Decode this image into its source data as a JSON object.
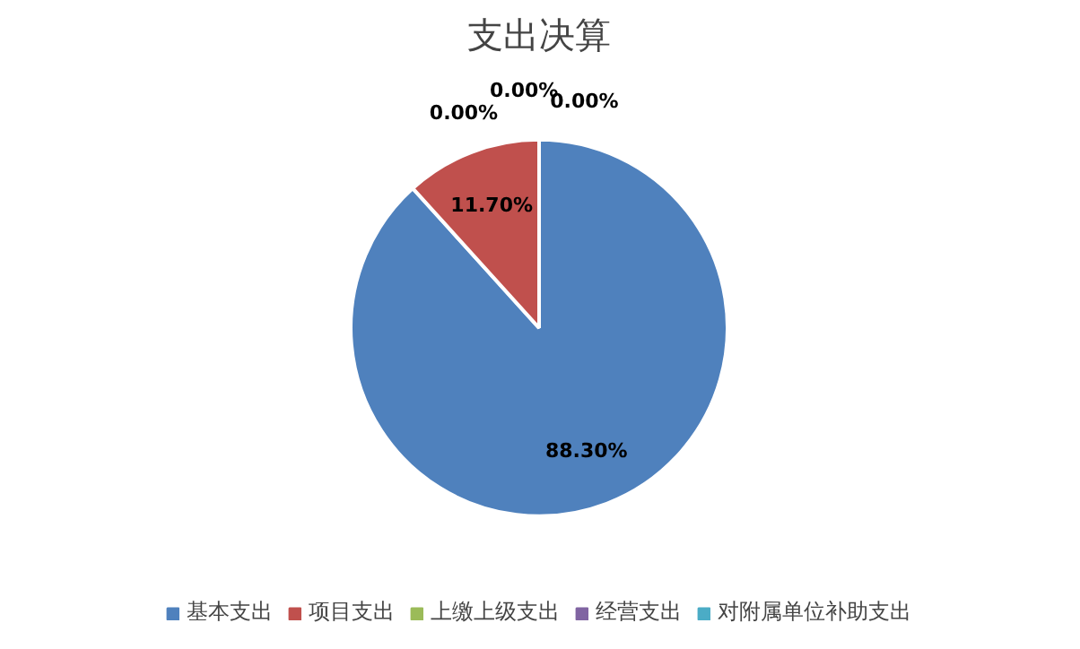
{
  "chart_data": {
    "type": "pie",
    "title": "支出决算",
    "categories": [
      "基本支出",
      "项目支出",
      "上缴上级支出",
      "经营支出",
      "对附属单位补助支出"
    ],
    "values": [
      88.3,
      11.7,
      0,
      0,
      0
    ],
    "value_labels": [
      "88.30%",
      "11.70%",
      "0.00%",
      "0.00%",
      "0.00%"
    ],
    "colors": [
      "#4f81bd",
      "#c0504d",
      "#9bbb59",
      "#8064a2",
      "#4bacc6"
    ],
    "legend": "bottom"
  }
}
